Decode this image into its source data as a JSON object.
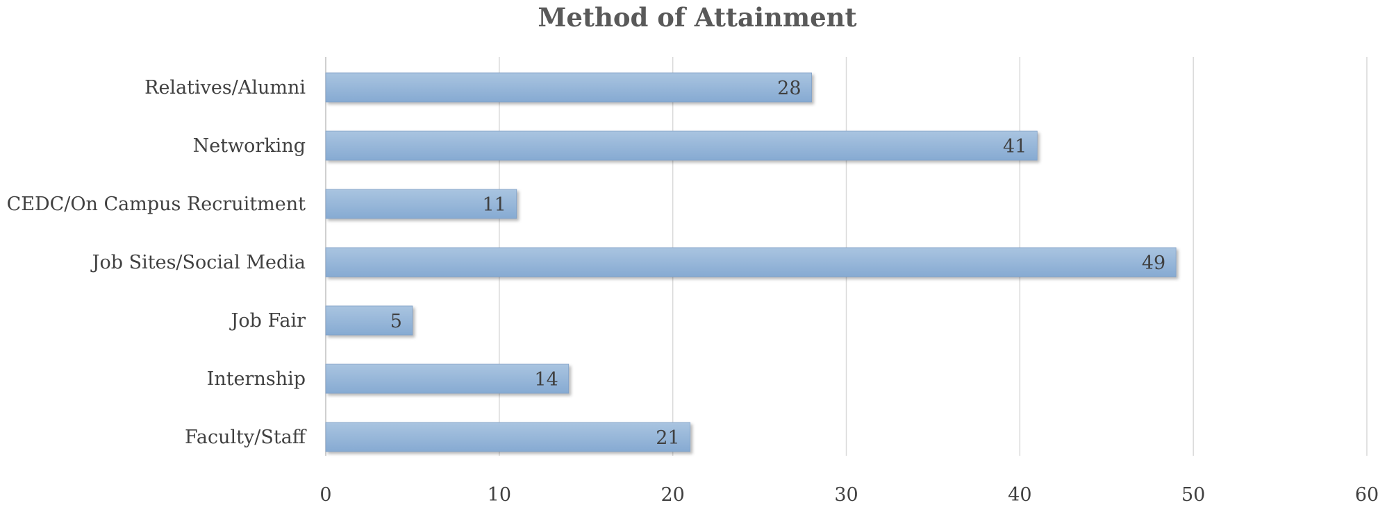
{
  "chart_data": {
    "type": "bar",
    "orientation": "horizontal",
    "title": "Method of Attainment",
    "categories": [
      "Relatives/Alumni",
      "Networking",
      "CEDC/On Campus Recruitment",
      "Job Sites/Social Media",
      "Job Fair",
      "Internship",
      "Faculty/Staff"
    ],
    "values": [
      28,
      41,
      11,
      49,
      5,
      14,
      21
    ],
    "xlim": [
      0,
      60
    ],
    "xticks": [
      0,
      10,
      20,
      30,
      40,
      50,
      60
    ],
    "xtick_labels": [
      "0",
      "10",
      "20",
      "30",
      "40",
      "50",
      "60"
    ],
    "xlabel": "",
    "ylabel": "",
    "grid": true,
    "legend": "none",
    "data_labels": true,
    "colors": {
      "bar_top": "#a9c4e0",
      "bar_bottom": "#86aad2",
      "bar_edge": "#7f9fc5",
      "text": "#404040",
      "title": "#595959",
      "grid": "#d9d9d9"
    }
  }
}
